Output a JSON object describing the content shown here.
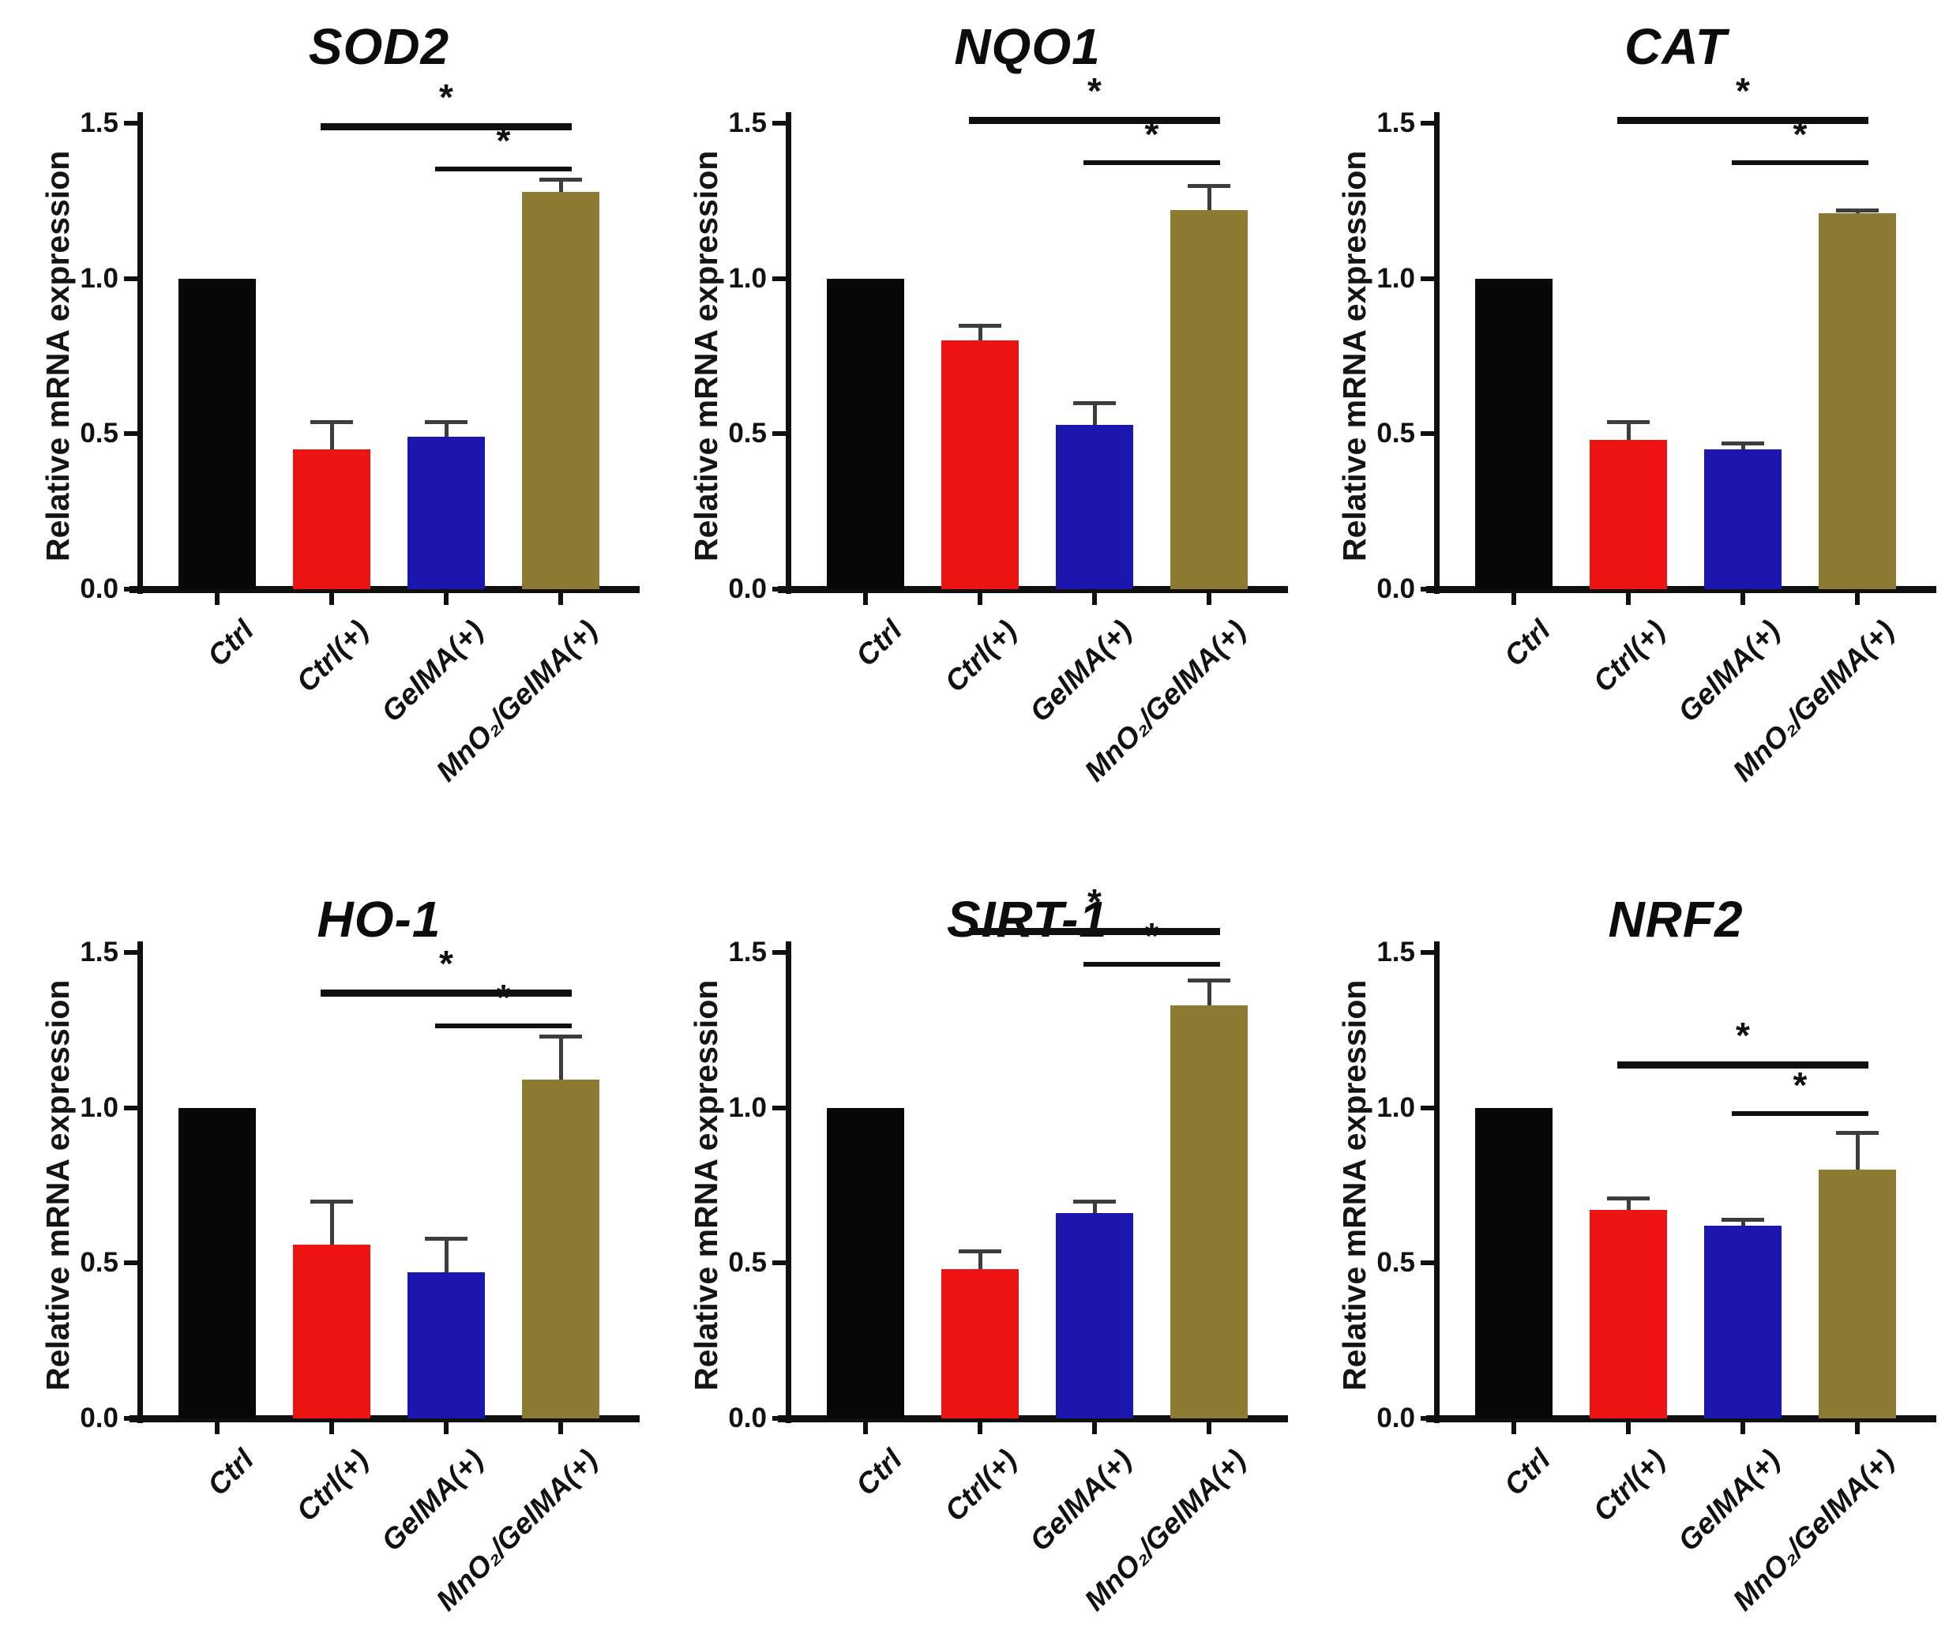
{
  "figure": {
    "ylabel": "Relative mRNA expression",
    "categories": [
      "Ctrl",
      "Ctrl(+)",
      "GelMA(+)",
      "MnO₂/GelMA(+)"
    ],
    "bar_colors": [
      "#080808",
      "#ee1414",
      "#1b17ae",
      "#8d7b33"
    ],
    "error_color": "#3d3d3d",
    "axis_color": "#101010",
    "yticks": [
      {
        "value": 1.5,
        "label": "1.5"
      },
      {
        "value": 1.0,
        "label": "1.0"
      },
      {
        "value": 0.5,
        "label": "0.5"
      },
      {
        "value": 0.0,
        "label": "0.0"
      }
    ]
  },
  "chart_data": [
    {
      "type": "bar",
      "title": "SOD2",
      "xlabel": "",
      "ylabel": "Relative mRNA expression",
      "ylim": [
        0,
        1.5
      ],
      "grid": false,
      "legend": "none",
      "categories": [
        "Ctrl",
        "Ctrl(+)",
        "GelMA(+)",
        "MnO₂/GelMA(+)"
      ],
      "values": [
        1.0,
        0.45,
        0.49,
        1.28
      ],
      "errors": [
        0,
        0.09,
        0.05,
        0.04
      ],
      "significance": [
        {
          "compare": [
            "Ctrl(+)",
            "MnO₂/GelMA(+)"
          ],
          "groups": [
            1,
            3
          ],
          "y": 1.5,
          "label": "*"
        },
        {
          "compare": [
            "GelMA(+)",
            "MnO₂/GelMA(+)"
          ],
          "groups": [
            2,
            3
          ],
          "y": 1.36,
          "label": "*"
        }
      ]
    },
    {
      "type": "bar",
      "title": "NQO1",
      "xlabel": "",
      "ylabel": "Relative mRNA expression",
      "ylim": [
        0,
        1.5
      ],
      "grid": false,
      "legend": "none",
      "categories": [
        "Ctrl",
        "Ctrl(+)",
        "GelMA(+)",
        "MnO₂/GelMA(+)"
      ],
      "values": [
        1.0,
        0.8,
        0.53,
        1.22
      ],
      "errors": [
        0,
        0.05,
        0.07,
        0.08
      ],
      "significance": [
        {
          "compare": [
            "Ctrl(+)",
            "MnO₂/GelMA(+)"
          ],
          "groups": [
            1,
            3
          ],
          "y": 1.52,
          "label": "*"
        },
        {
          "compare": [
            "GelMA(+)",
            "MnO₂/GelMA(+)"
          ],
          "groups": [
            2,
            3
          ],
          "y": 1.38,
          "label": "*"
        }
      ]
    },
    {
      "type": "bar",
      "title": "CAT",
      "xlabel": "",
      "ylabel": "Relative mRNA expression",
      "ylim": [
        0,
        1.5
      ],
      "grid": false,
      "legend": "none",
      "categories": [
        "Ctrl",
        "Ctrl(+)",
        "GelMA(+)",
        "MnO₂/GelMA(+)"
      ],
      "values": [
        1.0,
        0.48,
        0.45,
        1.21
      ],
      "errors": [
        0,
        0.06,
        0.02,
        0.01
      ],
      "significance": [
        {
          "compare": [
            "Ctrl(+)",
            "MnO₂/GelMA(+)"
          ],
          "groups": [
            1,
            3
          ],
          "y": 1.52,
          "label": "*"
        },
        {
          "compare": [
            "GelMA(+)",
            "MnO₂/GelMA(+)"
          ],
          "groups": [
            2,
            3
          ],
          "y": 1.38,
          "label": "*"
        }
      ]
    },
    {
      "type": "bar",
      "title": "HO-1",
      "xlabel": "",
      "ylabel": "Relative mRNA expression",
      "ylim": [
        0,
        1.5
      ],
      "grid": false,
      "legend": "none",
      "categories": [
        "Ctrl",
        "Ctrl(+)",
        "GelMA(+)",
        "MnO₂/GelMA(+)"
      ],
      "values": [
        1.0,
        0.56,
        0.47,
        1.09
      ],
      "errors": [
        0,
        0.14,
        0.11,
        0.14
      ],
      "significance": [
        {
          "compare": [
            "Ctrl(+)",
            "MnO₂/GelMA(+)"
          ],
          "groups": [
            1,
            3
          ],
          "y": 1.38,
          "label": "*"
        },
        {
          "compare": [
            "GelMA(+)",
            "MnO₂/GelMA(+)"
          ],
          "groups": [
            2,
            3
          ],
          "y": 1.27,
          "label": "*"
        }
      ]
    },
    {
      "type": "bar",
      "title": "SIRT-1",
      "xlabel": "",
      "ylabel": "Relative mRNA expression",
      "ylim": [
        0,
        1.5
      ],
      "grid": false,
      "legend": "none",
      "categories": [
        "Ctrl",
        "Ctrl(+)",
        "GelMA(+)",
        "MnO₂/GelMA(+)"
      ],
      "values": [
        1.0,
        0.48,
        0.66,
        1.33
      ],
      "errors": [
        0,
        0.06,
        0.04,
        0.08
      ],
      "significance": [
        {
          "compare": [
            "Ctrl(+)",
            "MnO₂/GelMA(+)"
          ],
          "groups": [
            1,
            3
          ],
          "y": 1.58,
          "label": "*"
        },
        {
          "compare": [
            "GelMA(+)",
            "MnO₂/GelMA(+)"
          ],
          "groups": [
            2,
            3
          ],
          "y": 1.47,
          "label": "*"
        }
      ]
    },
    {
      "type": "bar",
      "title": "NRF2",
      "xlabel": "",
      "ylabel": "Relative mRNA expression",
      "ylim": [
        0,
        1.5
      ],
      "grid": false,
      "legend": "none",
      "categories": [
        "Ctrl",
        "Ctrl(+)",
        "GelMA(+)",
        "MnO₂/GelMA(+)"
      ],
      "values": [
        1.0,
        0.67,
        0.62,
        0.8
      ],
      "errors": [
        0,
        0.04,
        0.02,
        0.12
      ],
      "significance": [
        {
          "compare": [
            "Ctrl(+)",
            "MnO₂/GelMA(+)"
          ],
          "groups": [
            1,
            3
          ],
          "y": 1.15,
          "label": "*"
        },
        {
          "compare": [
            "GelMA(+)",
            "MnO₂/GelMA(+)"
          ],
          "groups": [
            2,
            3
          ],
          "y": 0.99,
          "label": "*"
        }
      ]
    }
  ]
}
